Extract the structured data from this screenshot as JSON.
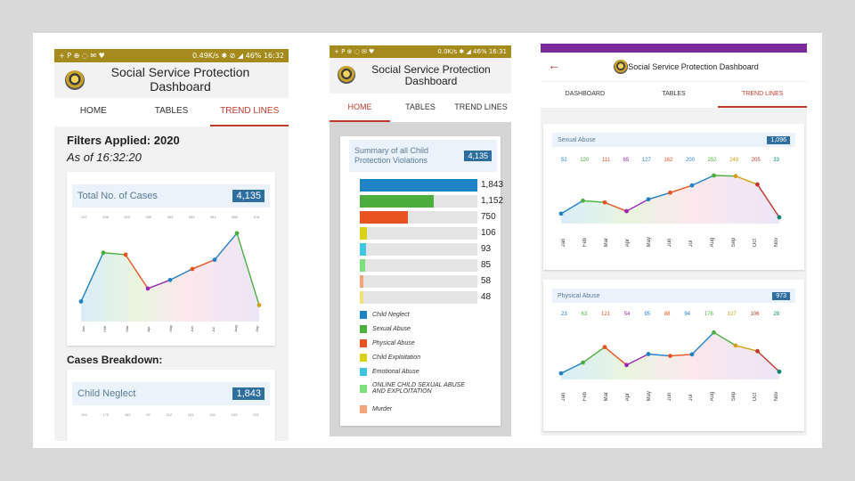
{
  "screen1": {
    "status_left": "+ P ⊕ ◌ ✉ ♥",
    "status_right": "0.49K/s ✱ ⊘ ◢ 46% 16:32",
    "title_line1": "Social Service Protection",
    "title_line2": "Dashboard",
    "tabs": [
      "HOME",
      "TABLES",
      "TREND LINES"
    ],
    "filters": "Filters Applied: 2020",
    "as_of": "As of 16:32:20",
    "total_card": {
      "label": "Total No. of Cases",
      "value": "4,135",
      "point_labels": [
        "127",
        "436",
        "423",
        "209",
        "263",
        "333",
        "391",
        "559",
        "104"
      ],
      "chart_data": {
        "type": "line",
        "x": [
          "Jan",
          "Feb",
          "Mar",
          "Apr",
          "May",
          "Jun",
          "Jul",
          "Aug",
          "Sep"
        ],
        "y": [
          127,
          436,
          423,
          209,
          263,
          333,
          391,
          559,
          104
        ],
        "ylim": [
          0,
          620
        ]
      },
      "month_labels": [
        "Jan",
        "Feb",
        "Mar",
        "Apr",
        "May",
        "Jun",
        "Jul",
        "Aug",
        "Sep"
      ]
    },
    "breakdown_title": "Cases Breakdown:",
    "neglect_card": {
      "label": "Child Neglect",
      "value": "1,843",
      "point_labels": [
        "194",
        "175",
        "162",
        "97",
        "112",
        "141",
        "151",
        "109",
        "201"
      ]
    }
  },
  "screen2": {
    "status_left": "+ P ⊕ ◌ ✉ ♥",
    "status_right": "0.0K/s ✱ ◢ 46% 16:31",
    "title_line1": "Social Service Protection",
    "title_line2": "Dashboard",
    "tabs": [
      "HOME",
      "TABLES",
      "TREND LINES"
    ],
    "summary_label": "Summary of all Child Protection Violations",
    "summary_value": "4,135",
    "chart_data": {
      "type": "bar",
      "categories": [
        "Child Neglect",
        "Sexual Abuse",
        "Physical Abuse",
        "Child Exploitation",
        "Emotional Abuse",
        "ONLINE CHILD SEXUAL ABUSE AND EXPLOITATION",
        "Murder",
        ""
      ],
      "values": [
        1843,
        1152,
        750,
        106,
        93,
        85,
        58,
        48
      ],
      "value_labels": [
        "1,843",
        "1,152",
        "750",
        "106",
        "93",
        "85",
        "58",
        "48"
      ],
      "colors": [
        "#1f82c4",
        "#4caf3d",
        "#e8541f",
        "#d9d21a",
        "#3ec6e0",
        "#7de07a",
        "#f4a27a",
        "#f2e27a"
      ],
      "xlim": [
        0,
        1843
      ]
    },
    "legend": [
      "Child Neglect",
      "Sexual Abuse",
      "Physical Abuse",
      "Child Exploitation",
      "Emotional Abuse",
      "ONLINE CHILD SEXUAL ABUSE AND EXPLOITATION",
      "Murder"
    ]
  },
  "screen3": {
    "back_icon": "←",
    "title": "Social Service Protection Dashboard",
    "tabs": [
      "DASHBOARD",
      "TABLES",
      "TREND LINES"
    ],
    "months": [
      "Jan",
      "Feb",
      "Mar",
      "Apr",
      "May",
      "Jun",
      "Jul",
      "Aug",
      "Sep",
      "Oct",
      "Nov"
    ],
    "sexual": {
      "label": "Sexual Abuse",
      "value": "1,096",
      "chart_data": {
        "type": "line",
        "x": [
          "Jan",
          "Feb",
          "Mar",
          "Apr",
          "May",
          "Jun",
          "Jul",
          "Aug",
          "Sep",
          "Oct",
          "Nov"
        ],
        "y": [
          52,
          120,
          111,
          65,
          127,
          162,
          200,
          252,
          249,
          205,
          33
        ],
        "ylim": [
          0,
          280
        ]
      },
      "point_labels": [
        "52",
        "120",
        "111",
        "65",
        "127",
        "162",
        "200",
        "252",
        "249",
        "205",
        "33"
      ]
    },
    "physical": {
      "label": "Physical Abuse",
      "value": "973",
      "chart_data": {
        "type": "line",
        "x": [
          "Jan",
          "Feb",
          "Mar",
          "Apr",
          "May",
          "Jun",
          "Jul",
          "Aug",
          "Sep",
          "Oct",
          "Nov"
        ],
        "y": [
          23,
          63,
          121,
          54,
          95,
          88,
          94,
          176,
          127,
          106,
          29
        ],
        "ylim": [
          0,
          200
        ]
      },
      "point_labels": [
        "23",
        "63",
        "121",
        "54",
        "95",
        "88",
        "94",
        "176",
        "127",
        "106",
        "29"
      ]
    },
    "point_colors": [
      "#1f82c4",
      "#4caf3d",
      "#e8541f",
      "#9c27b0",
      "#1f82c4",
      "#e8541f",
      "#1f82c4",
      "#4caf3d",
      "#d4a017",
      "#c0392b",
      "#00897b"
    ]
  }
}
